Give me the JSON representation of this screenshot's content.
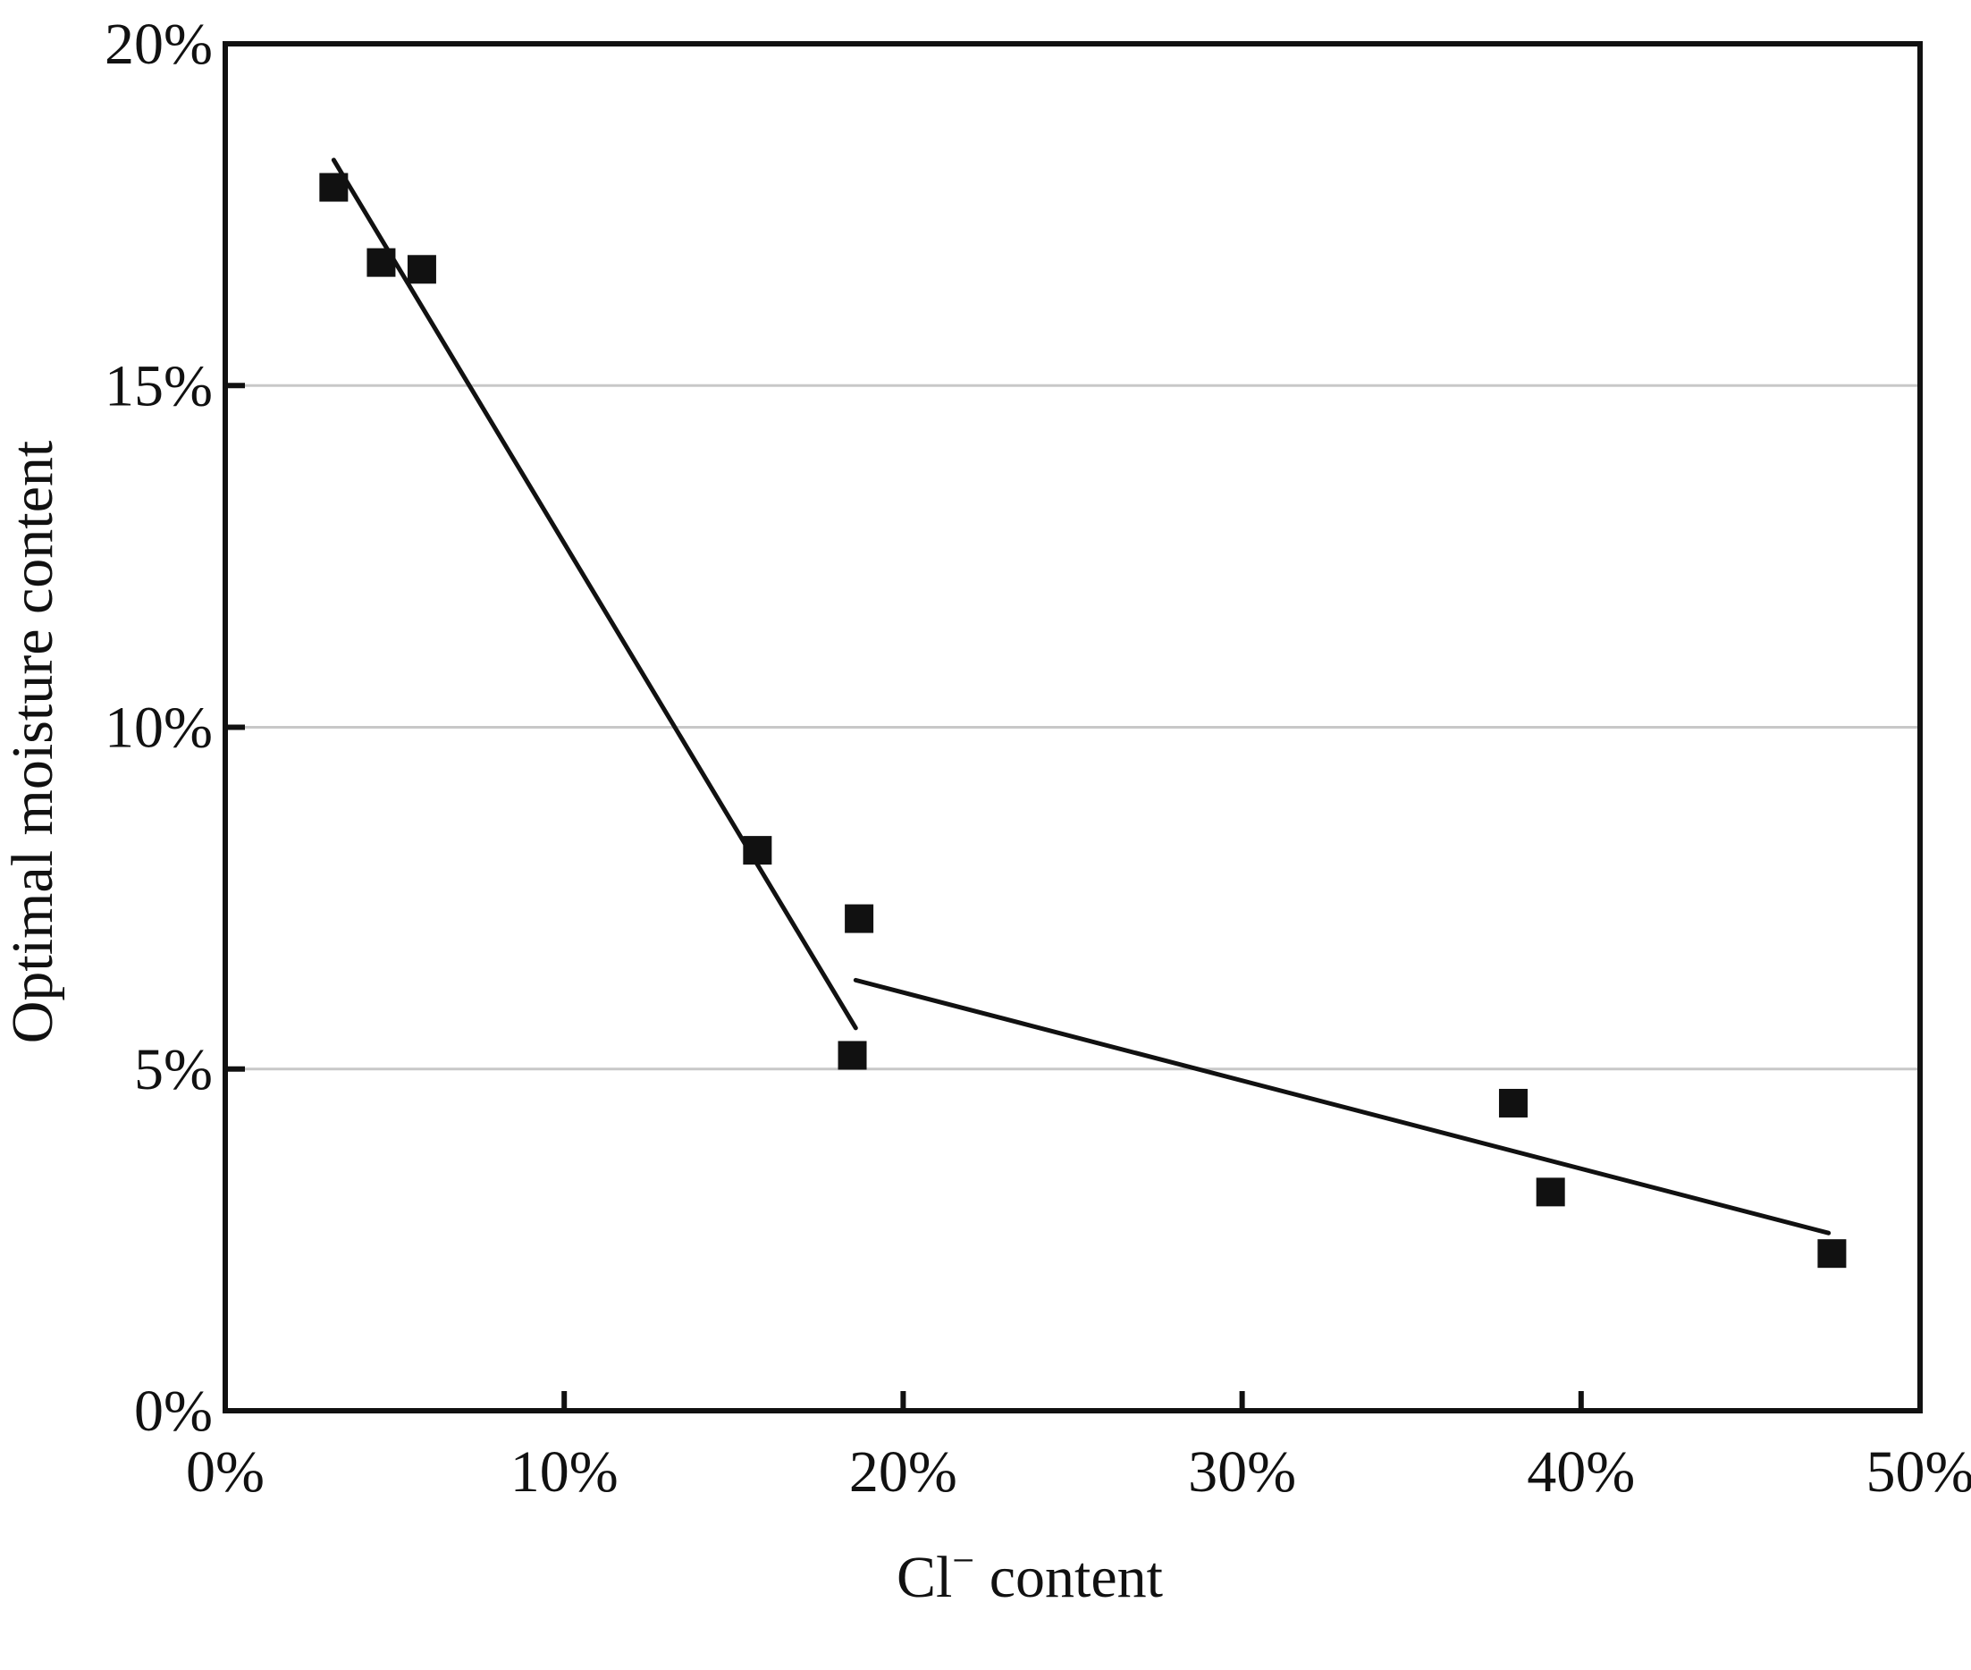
{
  "chart_data": {
    "type": "scatter",
    "title": "",
    "xlabel": "Cl",
    "xlabel_superscript": "−",
    "xlabel_suffix": " content",
    "ylabel": "Optimal moisture content",
    "xlim": [
      0,
      50
    ],
    "ylim": [
      0,
      20
    ],
    "x_ticks": [
      0,
      10,
      20,
      30,
      40,
      50
    ],
    "y_ticks": [
      0,
      5,
      10,
      15,
      20
    ],
    "x_tick_labels": [
      "0%",
      "10%",
      "20%",
      "30%",
      "40%",
      "50%"
    ],
    "y_tick_labels": [
      "0%",
      "5%",
      "10%",
      "15%",
      "20%"
    ],
    "grid": "horizontal",
    "legend": "none",
    "series": [
      {
        "type": "scatter",
        "marker": "square",
        "color": "#111111",
        "x": [
          3.2,
          4.6,
          5.8,
          15.7,
          18.7,
          18.5,
          38.0,
          39.1,
          47.4
        ],
        "y": [
          17.9,
          16.8,
          16.7,
          8.2,
          7.2,
          5.2,
          4.5,
          3.2,
          2.3
        ]
      }
    ],
    "fit_lines": [
      {
        "x": [
          3.2,
          18.6
        ],
        "y": [
          18.3,
          5.6
        ]
      },
      {
        "x": [
          18.6,
          47.3
        ],
        "y": [
          6.3,
          2.6
        ]
      }
    ],
    "colors": {
      "axis": "#111111",
      "grid": "#c8c8c8",
      "marker": "#111111",
      "line": "#111111"
    }
  }
}
